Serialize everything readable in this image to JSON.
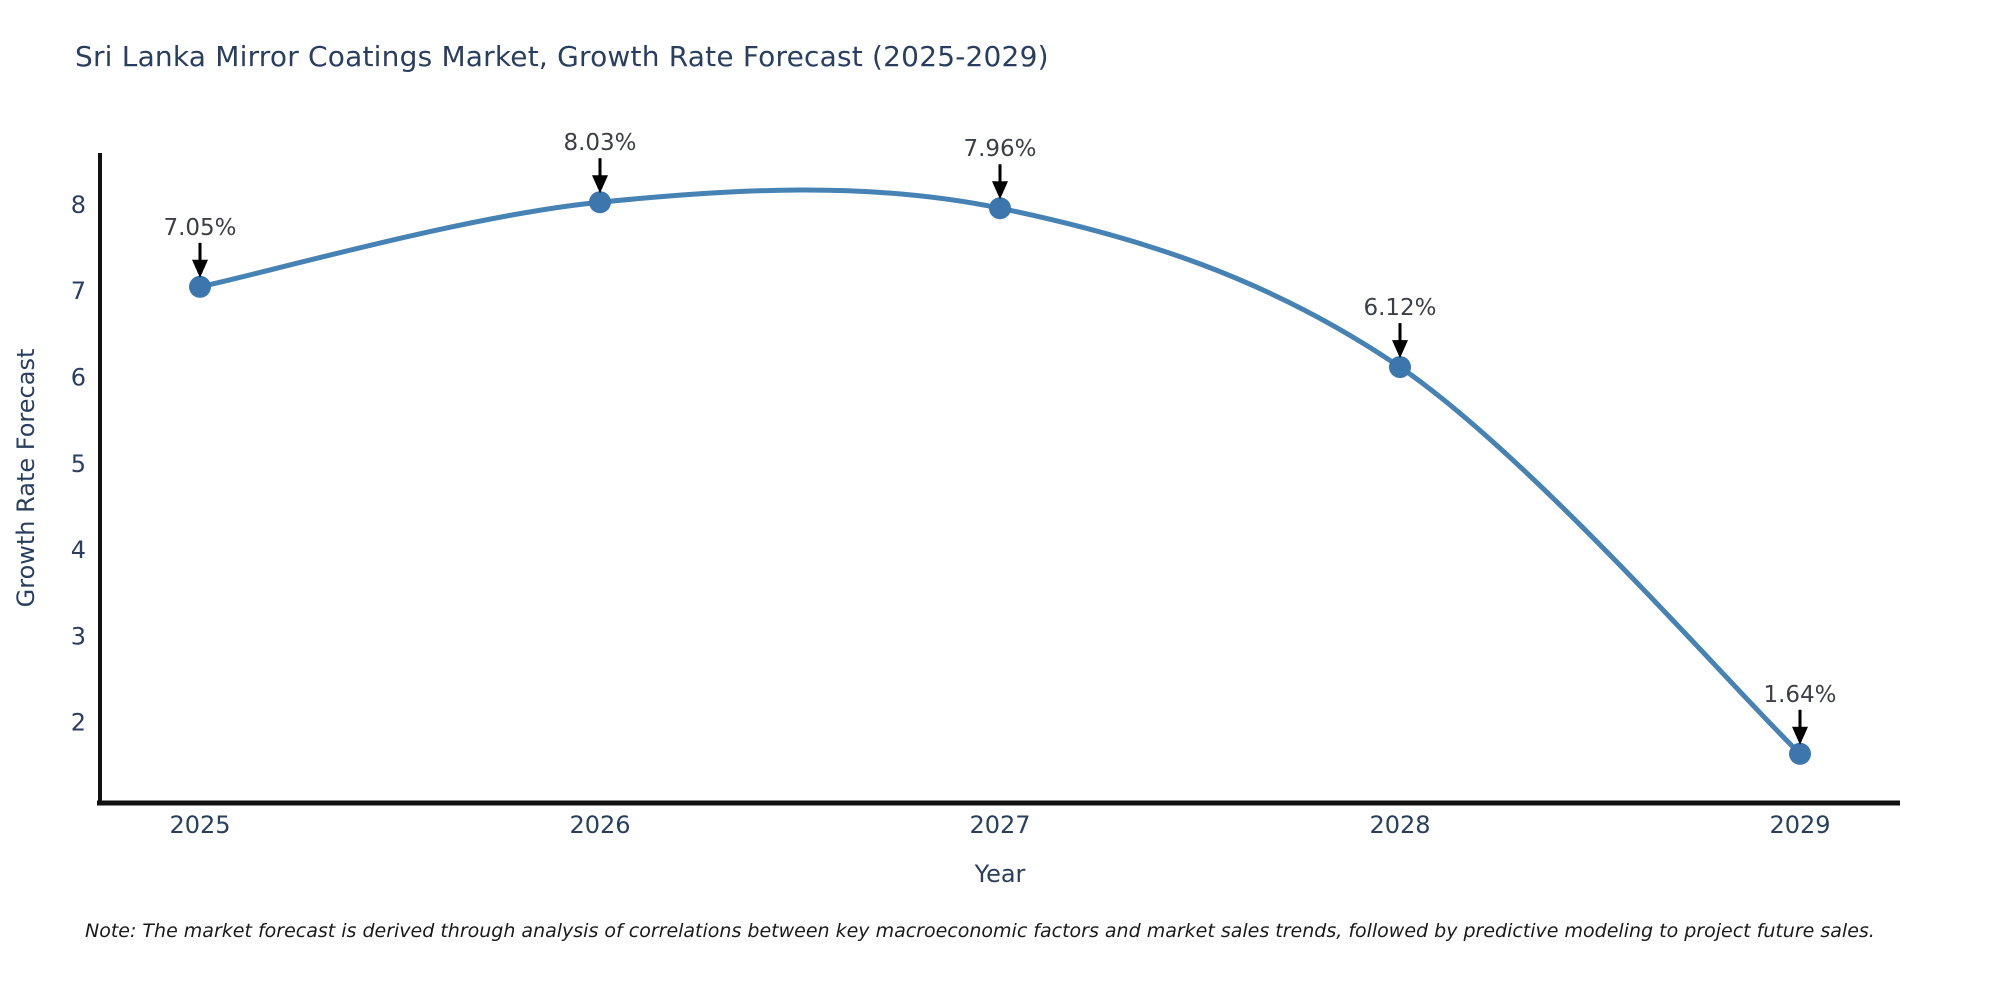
{
  "chart": {
    "title": "Sri Lanka Mirror Coatings Market, Growth Rate Forecast (2025-2029)",
    "note": "Note: The market forecast is derived through analysis of correlations between key macroeconomic factors and market sales trends, followed by predictive modeling to project future sales."
  },
  "chart_data": {
    "type": "line",
    "line_shape": "spline",
    "x": [
      2025,
      2026,
      2027,
      2028,
      2029
    ],
    "values": [
      7.05,
      8.03,
      7.96,
      6.12,
      1.64
    ],
    "point_labels": [
      "7.05%",
      "8.03%",
      "7.96%",
      "6.12%",
      "1.64%"
    ],
    "series_name": "Growth Rate Forecast",
    "xlabel": "Year",
    "ylabel": "Growth Rate Forecast",
    "yticks": [
      2,
      3,
      4,
      5,
      6,
      7,
      8
    ],
    "xlim": [
      2024.75,
      2029.25
    ],
    "ylim": [
      1.07,
      8.6
    ],
    "grid": false,
    "legend": "none",
    "colors": {
      "line": "#4682b4",
      "marker": "#3d76ad",
      "axis_line": "#111111",
      "tick_text": "#2a3f5f",
      "axis_title_text": "#2a3f5f",
      "annotation_text": "#3b3f46",
      "annotation_arrow": "#000000",
      "background": "#ffffff"
    }
  }
}
